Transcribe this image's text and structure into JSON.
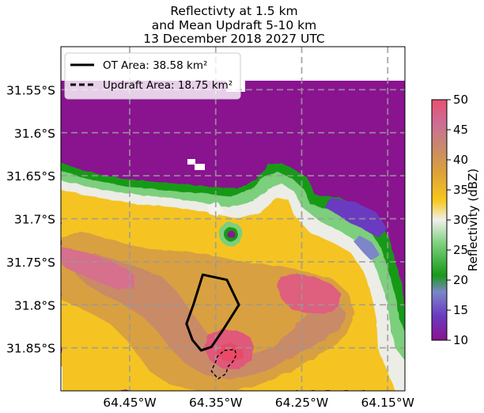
{
  "chart_data": {
    "type": "heatmap",
    "title_lines": [
      "Reflectivty at 1.5 km",
      "and Mean Updraft 5-10 km",
      "13 December 2018 2027 UTC"
    ],
    "xlabel": "",
    "ylabel": "",
    "x_ticks": [
      "64.45°W",
      "64.35°W",
      "64.25°W",
      "64.15°W"
    ],
    "x_tick_values": [
      -64.45,
      -64.35,
      -64.25,
      -64.15
    ],
    "y_ticks": [
      "31.55°S",
      "31.6°S",
      "31.65°S",
      "31.7°S",
      "31.75°S",
      "31.8°S",
      "31.85°S"
    ],
    "y_tick_values": [
      -31.55,
      -31.6,
      -31.65,
      -31.7,
      -31.75,
      -31.8,
      -31.85
    ],
    "xlim": [
      -64.53,
      -64.13
    ],
    "ylim": [
      -31.9,
      -31.5
    ],
    "grid": true,
    "colorbar": {
      "label": "Reflectivity (dBZ)",
      "range": [
        10,
        50
      ],
      "ticks": [
        "10",
        "15",
        "20",
        "25",
        "30",
        "35",
        "40",
        "45",
        "50"
      ],
      "tick_values": [
        10,
        15,
        20,
        25,
        30,
        35,
        40,
        45,
        50
      ],
      "colors": [
        "#8a1390",
        "#6a3ac0",
        "#7c86c8",
        "#199a19",
        "#7ccf7c",
        "#f0f0ec",
        "#f7c81e",
        "#dca03a",
        "#c88a6a",
        "#cc6d97",
        "#e8506e"
      ]
    },
    "legend": {
      "placement": "top-left",
      "entries": [
        {
          "label": "OT Area: 38.58 km²",
          "style": "solid"
        },
        {
          "label": "Updraft Area: 18.75 km²",
          "style": "dashed"
        }
      ]
    },
    "series": [
      {
        "name": "OT Area: 38.58 km²",
        "style": "solid",
        "lon": [
          -64.365,
          -64.337,
          -64.323,
          -64.342,
          -64.355,
          -64.367,
          -64.377,
          -64.384,
          -64.376
        ],
        "lat": [
          -31.765,
          -31.771,
          -31.8,
          -31.83,
          -31.849,
          -31.853,
          -31.841,
          -31.822,
          -31.8
        ]
      },
      {
        "name": "Updraft Area: 18.75 km²",
        "style": "dashed",
        "lon": [
          -64.34,
          -64.328,
          -64.326,
          -64.33,
          -64.336,
          -64.338,
          -64.347,
          -64.355,
          -64.35,
          -64.348
        ],
        "lat": [
          -31.853,
          -31.852,
          -31.858,
          -31.866,
          -31.872,
          -31.88,
          -31.886,
          -31.877,
          -31.866,
          -31.86
        ]
      }
    ]
  }
}
